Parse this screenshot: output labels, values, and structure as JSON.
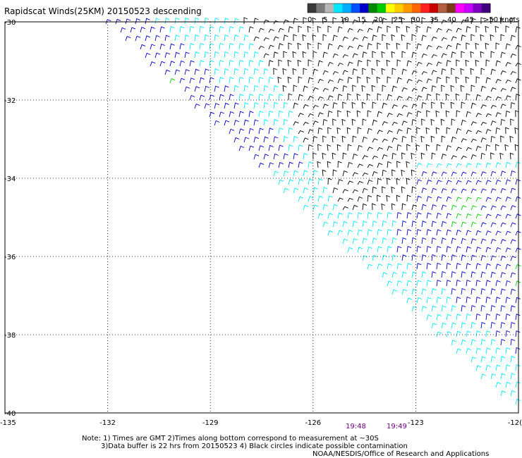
{
  "title": "Rapidscat Winds(25KM) 20150523 descending",
  "colorbar": {
    "labels": [
      "0",
      "5",
      "10",
      "15",
      "20",
      "25",
      "30",
      "35",
      "40",
      "45",
      ">50 knots"
    ],
    "colors": [
      "#3a3a3a",
      "#7a7a7a",
      "#b8b8b8",
      "#00e8ff",
      "#00b0ff",
      "#0050ff",
      "#0000c8",
      "#008800",
      "#00cc00",
      "#ffff00",
      "#ffcc00",
      "#ff9900",
      "#ff6600",
      "#ff2020",
      "#c80000",
      "#b06040",
      "#7a3a1a",
      "#ff00ff",
      "#c800ff",
      "#8000c0",
      "#400080"
    ]
  },
  "map": {
    "lat_labels": [
      "-30",
      "-32",
      "-34",
      "-36",
      "-38",
      "-40"
    ],
    "lon_labels": [
      "-135",
      "-132",
      "-129",
      "-126",
      "-123",
      "-120"
    ],
    "lat_label_display": [
      "-30",
      "-32",
      "-34",
      "-36",
      "-38",
      "-40"
    ],
    "lon_label_display": [
      "-135",
      "-132",
      "-129",
      "-126",
      "-123",
      "-12("
    ]
  },
  "times": [
    "19:48",
    "19:49"
  ],
  "notes": {
    "line1": "Note: 1) Times are GMT 2)Times along bottom correspond to measurement at ~30S",
    "line2": "3)Data buffer is 22 hrs from 20150523 4) Black circles indicate possible contamination",
    "line3": "NOAA/NESDIS/Office of Research and Applications"
  },
  "wind_colors": {
    "black": "#000000",
    "light_blue": "#00e8ff",
    "blue": "#0000c8",
    "green": "#00cc00",
    "yellow": "#ffff00"
  }
}
